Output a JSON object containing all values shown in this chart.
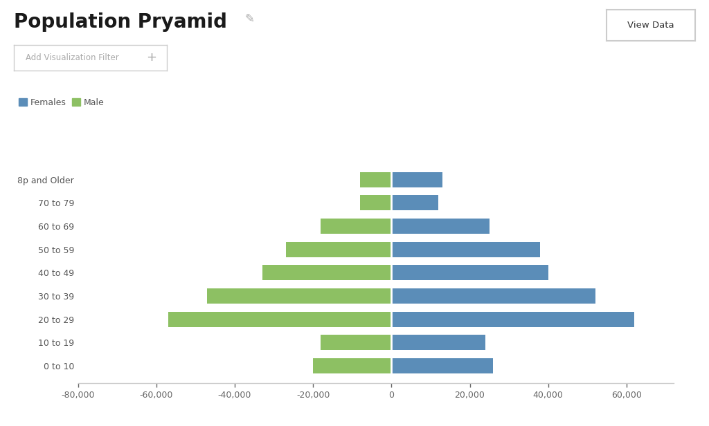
{
  "title": "Population Pryamid",
  "age_groups": [
    "0 to 10",
    "10 to 19",
    "20 to 29",
    "30 to 39",
    "40 to 49",
    "50 to 59",
    "60 to 69",
    "70 to 79",
    "8p and Older"
  ],
  "females": [
    26000,
    24000,
    62000,
    52000,
    40000,
    38000,
    25000,
    12000,
    13000
  ],
  "males": [
    -20000,
    -18000,
    -57000,
    -47000,
    -33000,
    -27000,
    -18000,
    -8000,
    -8000
  ],
  "female_color": "#5b8db8",
  "male_color": "#8dc063",
  "xlim": [
    -80000,
    72000
  ],
  "xticks": [
    -80000,
    -60000,
    -40000,
    -20000,
    0,
    20000,
    40000,
    60000
  ],
  "xtick_labels": [
    "-80,000",
    "-60,000",
    "-40,000",
    "-20,000",
    "0",
    "20,000",
    "40,000",
    "60,000"
  ],
  "background_color": "#ffffff",
  "legend_females": "Females",
  "legend_males": "Male",
  "bar_height": 0.65,
  "title_fontsize": 20,
  "tick_fontsize": 9,
  "legend_fontsize": 9
}
